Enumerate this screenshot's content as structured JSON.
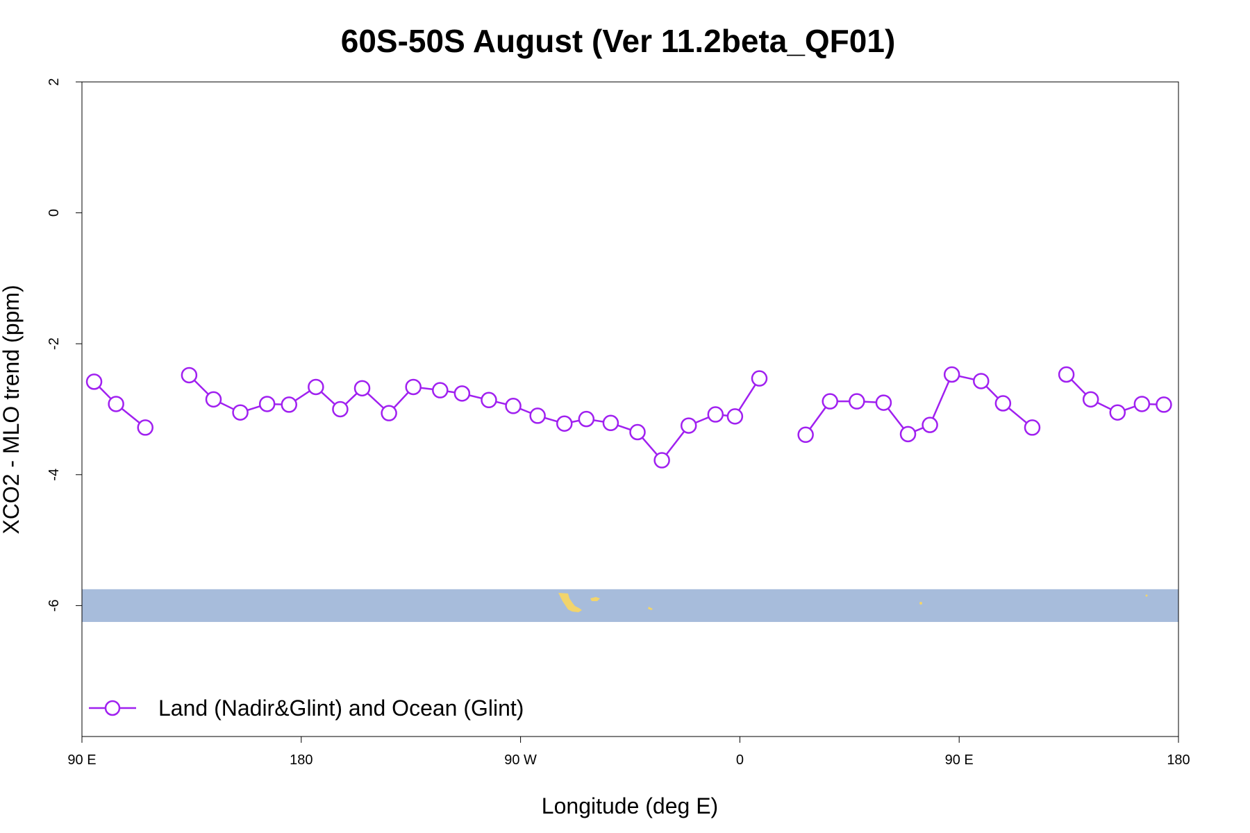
{
  "chart_data": {
    "type": "line",
    "title": "60S-50S August (Ver 11.2beta_QF01)",
    "xlabel": "Longitude (deg E)",
    "ylabel": "XCO2 - MLO trend (ppm)",
    "xlim": [
      90,
      540
    ],
    "ylim": [
      -8,
      2
    ],
    "x_ticks": [
      {
        "value": 90,
        "label": "90 E"
      },
      {
        "value": 180,
        "label": "180"
      },
      {
        "value": 270,
        "label": "90 W"
      },
      {
        "value": 360,
        "label": "0"
      },
      {
        "value": 450,
        "label": "90 E"
      },
      {
        "value": 540,
        "label": "180"
      }
    ],
    "y_ticks": [
      {
        "value": 2,
        "label": "2"
      },
      {
        "value": 0,
        "label": "0"
      },
      {
        "value": -2,
        "label": "-2"
      },
      {
        "value": -4,
        "label": "-4"
      },
      {
        "value": -6,
        "label": "-6"
      }
    ],
    "grid": false,
    "legend_position": "bottom-left",
    "colors": {
      "series": "#a020f0",
      "ocean_band": "#a7bcdb",
      "land": "#f2d46b",
      "axis": "#000000"
    },
    "map_band": {
      "y_top": -5.75,
      "y_bottom": -6.25
    },
    "series": [
      {
        "name": "Land (Nadir&Glint) and Ocean (Glint)",
        "segments": [
          [
            [
              95,
              -2.58
            ],
            [
              104,
              -2.92
            ],
            [
              116,
              -3.28
            ]
          ],
          [
            [
              134,
              -2.48
            ],
            [
              144,
              -2.85
            ],
            [
              155,
              -3.05
            ],
            [
              166,
              -2.92
            ],
            [
              175,
              -2.93
            ],
            [
              186,
              -2.66
            ],
            [
              196,
              -3.0
            ],
            [
              205,
              -2.68
            ],
            [
              216,
              -3.06
            ],
            [
              226,
              -2.66
            ],
            [
              237,
              -2.71
            ],
            [
              246,
              -2.76
            ],
            [
              257,
              -2.86
            ],
            [
              267,
              -2.95
            ],
            [
              277,
              -3.1
            ],
            [
              288,
              -3.22
            ],
            [
              297,
              -3.15
            ],
            [
              307,
              -3.21
            ],
            [
              318,
              -3.35
            ],
            [
              328,
              -3.78
            ],
            [
              339,
              -3.25
            ],
            [
              350,
              -3.08
            ],
            [
              358,
              -3.11
            ],
            [
              368,
              -2.53
            ]
          ],
          [
            [
              387,
              -3.39
            ],
            [
              397,
              -2.88
            ],
            [
              408,
              -2.88
            ],
            [
              419,
              -2.9
            ],
            [
              429,
              -3.38
            ],
            [
              438,
              -3.24
            ],
            [
              447,
              -2.47
            ],
            [
              459,
              -2.57
            ],
            [
              468,
              -2.91
            ],
            [
              480,
              -3.28
            ]
          ],
          [
            [
              494,
              -2.47
            ],
            [
              504,
              -2.85
            ],
            [
              515,
              -3.05
            ],
            [
              525,
              -2.92
            ],
            [
              534,
              -2.93
            ]
          ]
        ]
      }
    ]
  }
}
